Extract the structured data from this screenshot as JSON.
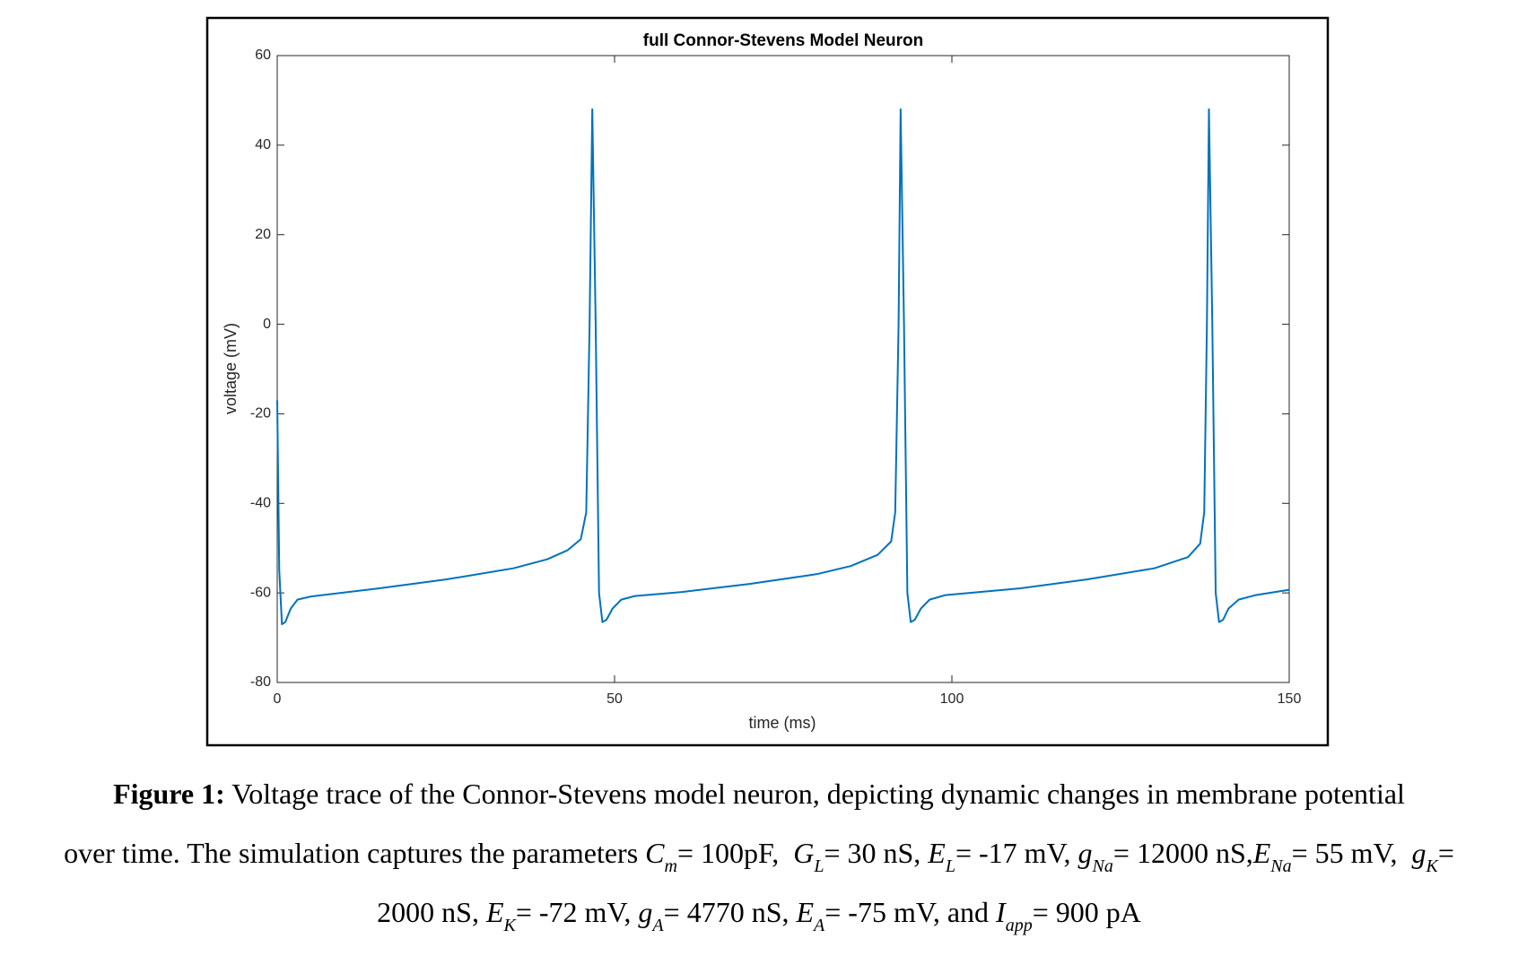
{
  "chart_data": {
    "type": "line",
    "title": "full Connor-Stevens Model Neuron",
    "xlabel": "time (ms)",
    "ylabel": "voltage (mV)",
    "color": "#0072bd",
    "xlim": [
      0,
      150
    ],
    "ylim": [
      -80,
      60
    ],
    "xticks": [
      0,
      50,
      100,
      150
    ],
    "yticks": [
      -80,
      -60,
      -40,
      -20,
      0,
      20,
      40,
      60
    ],
    "x": [
      0,
      0.3,
      0.7,
      1.2,
      2,
      3,
      5,
      15,
      25,
      35,
      40,
      43,
      45,
      45.8,
      46.3,
      46.7,
      47.2,
      47.7,
      48.2,
      48.8,
      49.7,
      51,
      53,
      60,
      70,
      80,
      85,
      89,
      91,
      91.6,
      92.1,
      92.4,
      92.9,
      93.4,
      93.9,
      94.5,
      95.4,
      96.7,
      99,
      110,
      120,
      130,
      135,
      136.8,
      137.4,
      137.8,
      138.1,
      138.6,
      139.1,
      139.6,
      140.2,
      141,
      142.5,
      145,
      150
    ],
    "values": [
      -17,
      -55,
      -67,
      -66.5,
      -63.5,
      -61.5,
      -60.8,
      -59,
      -57,
      -54.5,
      -52.5,
      -50.5,
      -48,
      -42,
      0,
      48,
      0,
      -60,
      -66.5,
      -66,
      -63.5,
      -61.5,
      -60.7,
      -59.8,
      -58,
      -55.8,
      -54,
      -51.5,
      -48.5,
      -42,
      0,
      48,
      0,
      -60,
      -66.5,
      -66,
      -63.5,
      -61.5,
      -60.5,
      -59,
      -57,
      -54.5,
      -52,
      -49,
      -42,
      0,
      48,
      0,
      -60,
      -66.5,
      -66,
      -63.5,
      -61.5,
      -60.5,
      -59.3
    ]
  },
  "caption": {
    "lines": [
      [
        {
          "b": "Figure 1:"
        },
        {
          "t": " Voltage trace of the Connor-Stevens model neuron, depicting dynamic changes in membrane potential"
        }
      ],
      [
        {
          "t": "over time. The simulation captures the parameters "
        },
        {
          "i": "C",
          "sub": "m"
        },
        {
          "t": "= 100pF,  "
        },
        {
          "i": "G",
          "sub": "L"
        },
        {
          "t": "= 30 nS, "
        },
        {
          "i": "E",
          "sub": "L"
        },
        {
          "t": "= -17 mV, "
        },
        {
          "i": "g",
          "sub": "Na"
        },
        {
          "t": "= 12000 nS,"
        },
        {
          "i": "E",
          "sub": "Na"
        },
        {
          "t": "= 55 mV,  "
        },
        {
          "i": "g",
          "sub": "K"
        },
        {
          "t": "="
        }
      ],
      [
        {
          "t": "2000 nS, "
        },
        {
          "i": "E",
          "sub": "K"
        },
        {
          "t": "= -72 mV, "
        },
        {
          "i": "g",
          "sub": "A"
        },
        {
          "t": "= 4770 nS, "
        },
        {
          "i": "E",
          "sub": "A"
        },
        {
          "t": "= -75 mV, and "
        },
        {
          "i": "I",
          "sub": "app"
        },
        {
          "t": "= 900 pA"
        }
      ]
    ]
  }
}
